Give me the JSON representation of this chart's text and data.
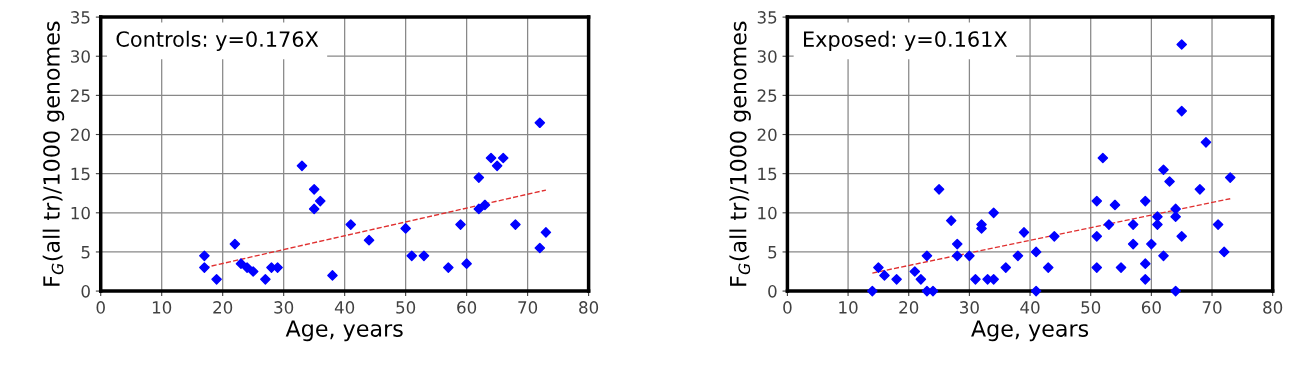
{
  "chart_data": [
    {
      "type": "scatter",
      "xlabel": "Age, years",
      "ylabel": "F$_{G}$(all tr)/1000 genomes",
      "annotations": [
        "Controls: y=0.176X"
      ],
      "xlim": [
        0,
        80
      ],
      "ylim": [
        0,
        35
      ],
      "xticks": [
        0,
        10,
        20,
        30,
        40,
        50,
        60,
        70,
        80
      ],
      "yticks": [
        0,
        5,
        10,
        15,
        20,
        25,
        30,
        35
      ],
      "grid": true,
      "legend": false,
      "series": [
        {
          "color": "#0000ff",
          "marker": "diamond",
          "x": [
            17,
            17,
            19,
            22,
            23,
            24,
            25,
            27,
            28,
            29,
            33,
            35,
            35,
            36,
            38,
            41,
            44,
            50,
            51,
            53,
            57,
            59,
            60,
            62,
            62,
            63,
            64,
            65,
            66,
            68,
            72,
            72,
            73
          ],
          "values": [
            4.5,
            3,
            1.5,
            6,
            3.5,
            3,
            2.5,
            1.5,
            3,
            3,
            16,
            13,
            10.5,
            11.5,
            2,
            8.5,
            6.5,
            8,
            4.5,
            4.5,
            3,
            8.5,
            3.5,
            10.5,
            14.5,
            11,
            17,
            16,
            17,
            8.5,
            21.5,
            5.5,
            7.5
          ]
        },
        {
          "type": "line",
          "color": "#e03030",
          "line_style": "dashed",
          "marker": "none",
          "x": [
            17,
            73
          ],
          "values": [
            3,
            12.9
          ]
        }
      ]
    },
    {
      "type": "scatter",
      "xlabel": "Age, years",
      "ylabel": "F$_{G}$(all tr)/1000 genomes",
      "annotations": [
        "Exposed: y=0.161X"
      ],
      "xlim": [
        0,
        80
      ],
      "ylim": [
        0,
        35
      ],
      "xticks": [
        0,
        10,
        20,
        30,
        40,
        50,
        60,
        70,
        80
      ],
      "yticks": [
        0,
        5,
        10,
        15,
        20,
        25,
        30,
        35
      ],
      "grid": true,
      "legend": false,
      "series": [
        {
          "color": "#0000ff",
          "marker": "diamond",
          "x": [
            14,
            15,
            16,
            18,
            21,
            22,
            23,
            23,
            24,
            25,
            27,
            28,
            28,
            30,
            31,
            32,
            32,
            33,
            34,
            34,
            36,
            38,
            39,
            41,
            41,
            43,
            44,
            51,
            51,
            51,
            52,
            53,
            54,
            55,
            57,
            57,
            59,
            59,
            59,
            60,
            61,
            61,
            62,
            62,
            63,
            64,
            64,
            64,
            65,
            65,
            65,
            68,
            69,
            71,
            72,
            73
          ],
          "values": [
            0,
            3,
            2,
            1.5,
            2.5,
            1.5,
            4.5,
            0,
            0,
            13,
            9,
            6,
            4.5,
            4.5,
            1.5,
            8.5,
            8,
            1.5,
            10,
            1.5,
            3,
            4.5,
            7.5,
            0,
            5,
            3,
            7,
            11.5,
            7,
            3,
            17,
            8.5,
            11,
            3,
            8.5,
            6,
            11.5,
            3.5,
            1.5,
            6,
            9.5,
            8.5,
            15.5,
            4.5,
            14,
            10.5,
            9.5,
            0,
            31.5,
            23,
            7,
            13,
            19,
            8.5,
            5,
            14.5
          ]
        },
        {
          "type": "line",
          "color": "#e03030",
          "line_style": "dashed",
          "marker": "none",
          "x": [
            14,
            73
          ],
          "values": [
            2.3,
            11.8
          ]
        }
      ]
    }
  ]
}
